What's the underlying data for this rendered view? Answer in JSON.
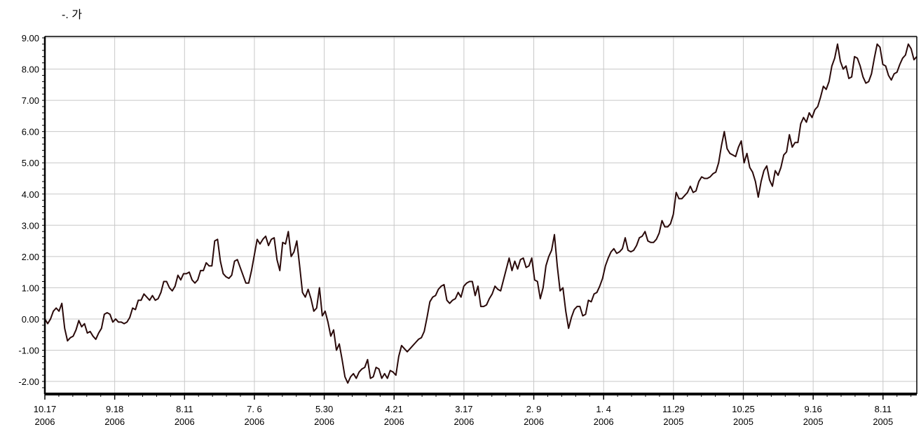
{
  "chart_data": {
    "type": "line",
    "title": "-. 가",
    "xlabel": "",
    "ylabel": "",
    "ylim": [
      -2.2,
      9.0
    ],
    "grid": true,
    "y_ticks": [
      "9.00",
      "8.00",
      "7.00",
      "6.00",
      "5.00",
      "4.00",
      "3.00",
      "2.00",
      "1.00",
      "0.00",
      "-1.00",
      "-2.00"
    ],
    "x_ticks": [
      {
        "date": "10.17",
        "year": "2006"
      },
      {
        "date": "9.18",
        "year": "2006"
      },
      {
        "date": "8.11",
        "year": "2006"
      },
      {
        "date": "7. 6",
        "year": "2006"
      },
      {
        "date": "5.30",
        "year": "2006"
      },
      {
        "date": "4.21",
        "year": "2006"
      },
      {
        "date": "3.17",
        "year": "2006"
      },
      {
        "date": "2. 9",
        "year": "2006"
      },
      {
        "date": "1. 4",
        "year": "2006"
      },
      {
        "date": "11.29",
        "year": "2005"
      },
      {
        "date": "10.25",
        "year": "2005"
      },
      {
        "date": "9.16",
        "year": "2005"
      },
      {
        "date": "8.11",
        "year": "2005"
      }
    ],
    "series_color": "#2a0a0a",
    "series": [
      {
        "values": [
          0.0,
          -0.15,
          0.0,
          0.25,
          0.35,
          0.25,
          0.5,
          -0.3,
          -0.7,
          -0.6,
          -0.55,
          -0.35,
          -0.05,
          -0.25,
          -0.15,
          -0.45,
          -0.4,
          -0.55,
          -0.65,
          -0.45,
          -0.3,
          0.15,
          0.2,
          0.15,
          -0.1,
          0.0,
          -0.1,
          -0.1,
          -0.15,
          -0.1,
          0.05,
          0.35,
          0.3,
          0.6,
          0.6,
          0.8,
          0.7,
          0.6,
          0.75,
          0.6,
          0.65,
          0.85,
          1.2,
          1.2,
          1.0,
          0.9,
          1.05,
          1.4,
          1.25,
          1.45,
          1.45,
          1.5,
          1.25,
          1.15,
          1.25,
          1.55,
          1.55,
          1.8,
          1.7,
          1.7,
          2.5,
          2.55,
          1.85,
          1.45,
          1.35,
          1.3,
          1.4,
          1.85,
          1.9,
          1.65,
          1.4,
          1.15,
          1.15,
          1.55,
          2.05,
          2.55,
          2.4,
          2.55,
          2.65,
          2.35,
          2.55,
          2.6,
          1.9,
          1.55,
          2.45,
          2.4,
          2.8,
          2.0,
          2.15,
          2.5,
          1.7,
          0.85,
          0.7,
          0.95,
          0.65,
          0.25,
          0.35,
          1.0,
          0.1,
          0.25,
          -0.1,
          -0.55,
          -0.35,
          -1.0,
          -0.8,
          -1.3,
          -1.85,
          -2.05,
          -1.85,
          -1.75,
          -1.9,
          -1.7,
          -1.6,
          -1.55,
          -1.3,
          -1.9,
          -1.85,
          -1.55,
          -1.6,
          -1.9,
          -1.75,
          -1.9,
          -1.65,
          -1.7,
          -1.8,
          -1.2,
          -0.85,
          -0.95,
          -1.05,
          -0.95,
          -0.85,
          -0.75,
          -0.65,
          -0.6,
          -0.4,
          0.05,
          0.55,
          0.7,
          0.75,
          0.95,
          1.05,
          1.1,
          0.6,
          0.5,
          0.6,
          0.65,
          0.85,
          0.7,
          1.05,
          1.15,
          1.2,
          1.2,
          0.75,
          1.05,
          0.4,
          0.4,
          0.45,
          0.65,
          0.8,
          1.05,
          0.95,
          0.9,
          1.25,
          1.6,
          1.95,
          1.55,
          1.85,
          1.6,
          1.9,
          1.95,
          1.65,
          1.7,
          1.95,
          1.25,
          1.2,
          0.65,
          1.0,
          1.7,
          2.0,
          2.2,
          2.7,
          1.7,
          0.9,
          1.0,
          0.25,
          -0.3,
          0.05,
          0.3,
          0.4,
          0.4,
          0.1,
          0.15,
          0.6,
          0.55,
          0.8,
          0.85,
          1.05,
          1.3,
          1.7,
          1.95,
          2.15,
          2.25,
          2.1,
          2.15,
          2.25,
          2.6,
          2.2,
          2.15,
          2.2,
          2.35,
          2.6,
          2.65,
          2.8,
          2.5,
          2.45,
          2.45,
          2.55,
          2.75,
          3.15,
          2.95,
          2.95,
          3.05,
          3.35,
          4.05,
          3.85,
          3.85,
          3.95,
          4.05,
          4.25,
          4.05,
          4.1,
          4.4,
          4.55,
          4.5,
          4.5,
          4.55,
          4.65,
          4.7,
          5.0,
          5.55,
          6.0,
          5.45,
          5.3,
          5.25,
          5.2,
          5.5,
          5.7,
          5.0,
          5.3,
          4.85,
          4.7,
          4.4,
          3.9,
          4.4,
          4.75,
          4.9,
          4.45,
          4.25,
          4.75,
          4.6,
          4.85,
          5.25,
          5.35,
          5.9,
          5.5,
          5.65,
          5.65,
          6.25,
          6.45,
          6.3,
          6.6,
          6.45,
          6.7,
          6.8,
          7.1,
          7.45,
          7.35,
          7.6,
          8.1,
          8.35,
          8.8,
          8.25,
          8.0,
          8.1,
          7.7,
          7.75,
          8.4,
          8.35,
          8.1,
          7.75,
          7.55,
          7.6,
          7.85,
          8.35,
          8.8,
          8.7,
          8.15,
          8.1,
          7.8,
          7.65,
          7.85,
          7.9,
          8.15,
          8.35,
          8.45,
          8.8,
          8.65,
          8.3,
          8.4
        ]
      }
    ]
  }
}
